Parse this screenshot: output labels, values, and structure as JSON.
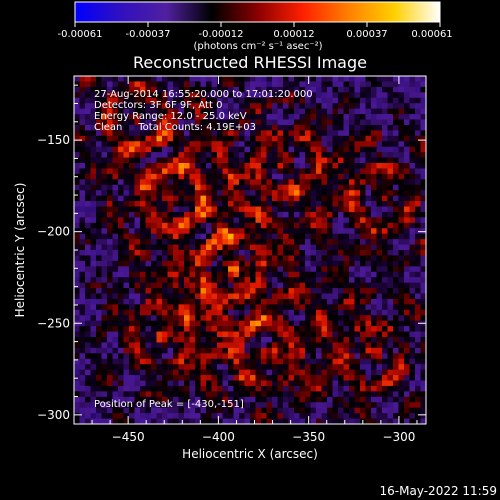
{
  "chart_data": {
    "type": "heatmap",
    "title": "Reconstructed RHESSI Image",
    "xlabel": "Heliocentric X (arcsec)",
    "ylabel": "Heliocentric Y (arcsec)",
    "xlim": [
      -480,
      -285
    ],
    "ylim": [
      -305,
      -115
    ],
    "xticks": [
      -450,
      -400,
      -350,
      -300
    ],
    "yticks": [
      -150,
      -200,
      -250,
      -300
    ],
    "colorbar": {
      "ticks": [
        "-0.00061",
        "-0.00037",
        "-0.00012",
        "0.00012",
        "0.00037",
        "0.00061"
      ],
      "range": [
        -0.00061,
        0.00061
      ],
      "units_line": "(photons cm⁻² s⁻¹ asec⁻²)",
      "colors": [
        "#0000ff",
        "#3010c0",
        "#5020a0",
        "#000000",
        "#8a0000",
        "#ff2000",
        "#ff8000",
        "#ffd000",
        "#ffffff"
      ]
    },
    "annotations": [
      "27-Aug-2014 16:55:20.000 to 17:01:20.000",
      "Detectors: 3F 6F 9F, Att 0",
      "Energy Range: 12.0 - 25.0 keV",
      "Clean     Total Counts: 4.19E+03"
    ],
    "peak_label": "Position of Peak = [-430,-151]",
    "peak_position": [
      -430,
      -151
    ]
  },
  "timestamp": "16-May-2022 11:59"
}
